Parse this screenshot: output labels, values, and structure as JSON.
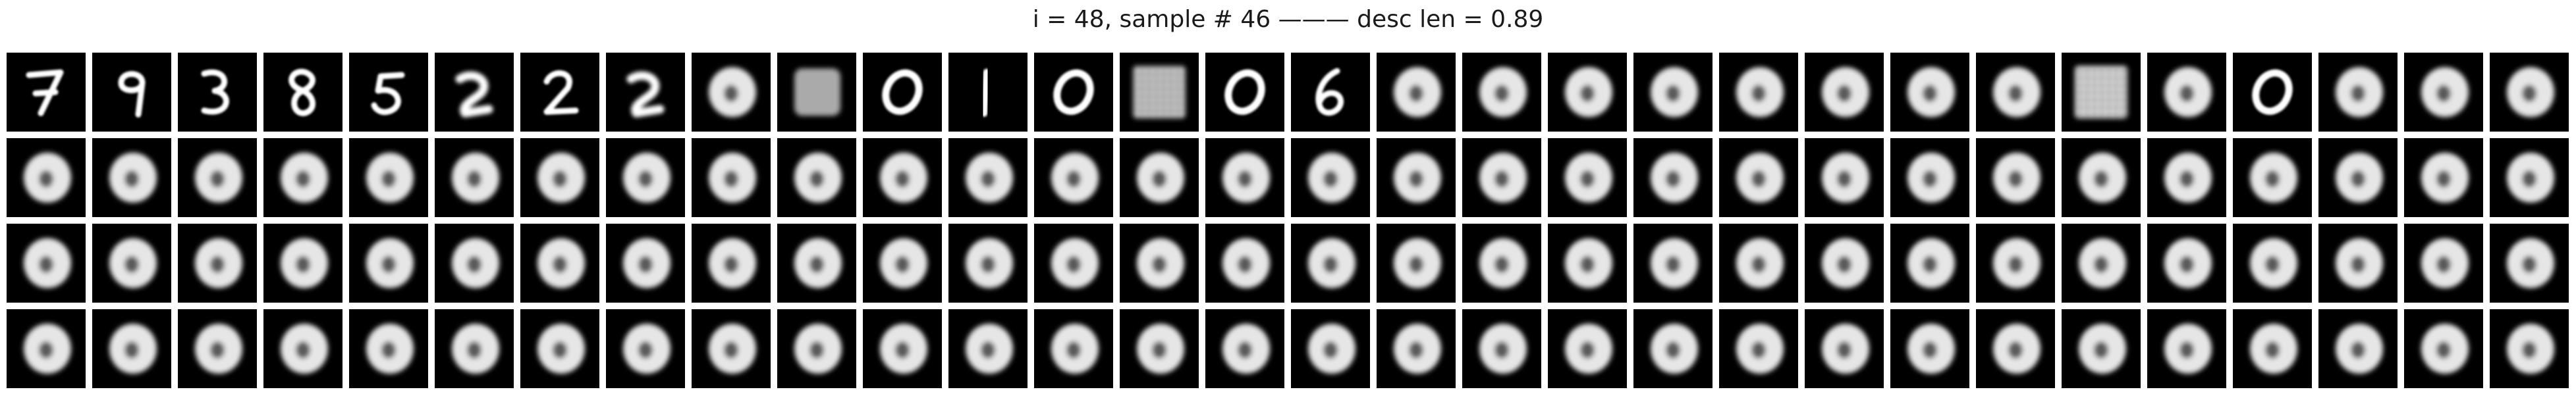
{
  "figure": {
    "title": "i = 48, sample # 46 ——— desc len = 0.89",
    "grid": {
      "rows": 4,
      "columns": 30
    },
    "panel_background": "#000000",
    "panel_foreground": "#ffffff",
    "row_1_panels": [
      {
        "content": "digit-7"
      },
      {
        "content": "digit-9"
      },
      {
        "content": "digit-3"
      },
      {
        "content": "digit-8"
      },
      {
        "content": "digit-5"
      },
      {
        "content": "blurred-digit"
      },
      {
        "content": "digit-2"
      },
      {
        "content": "blurred-digit"
      },
      {
        "content": "blurred-0"
      },
      {
        "content": "noisy-square"
      },
      {
        "content": "digit-0"
      },
      {
        "content": "digit-1"
      },
      {
        "content": "digit-0"
      },
      {
        "content": "noisy-grid"
      },
      {
        "content": "digit-0"
      },
      {
        "content": "digit-6"
      },
      {
        "content": "blurred-0"
      },
      {
        "content": "blurred-0"
      },
      {
        "content": "blurred-0"
      },
      {
        "content": "blurred-0"
      },
      {
        "content": "blurred-0"
      },
      {
        "content": "blurred-0"
      },
      {
        "content": "blurred-0"
      },
      {
        "content": "blurred-0"
      },
      {
        "content": "dotted-grid"
      },
      {
        "content": "blurred-0"
      },
      {
        "content": "digit-0"
      },
      {
        "content": "blurred-0"
      },
      {
        "content": "blurred-0"
      },
      {
        "content": "blurred-0"
      }
    ],
    "rows_2_to_4_content": "blurred-0"
  }
}
